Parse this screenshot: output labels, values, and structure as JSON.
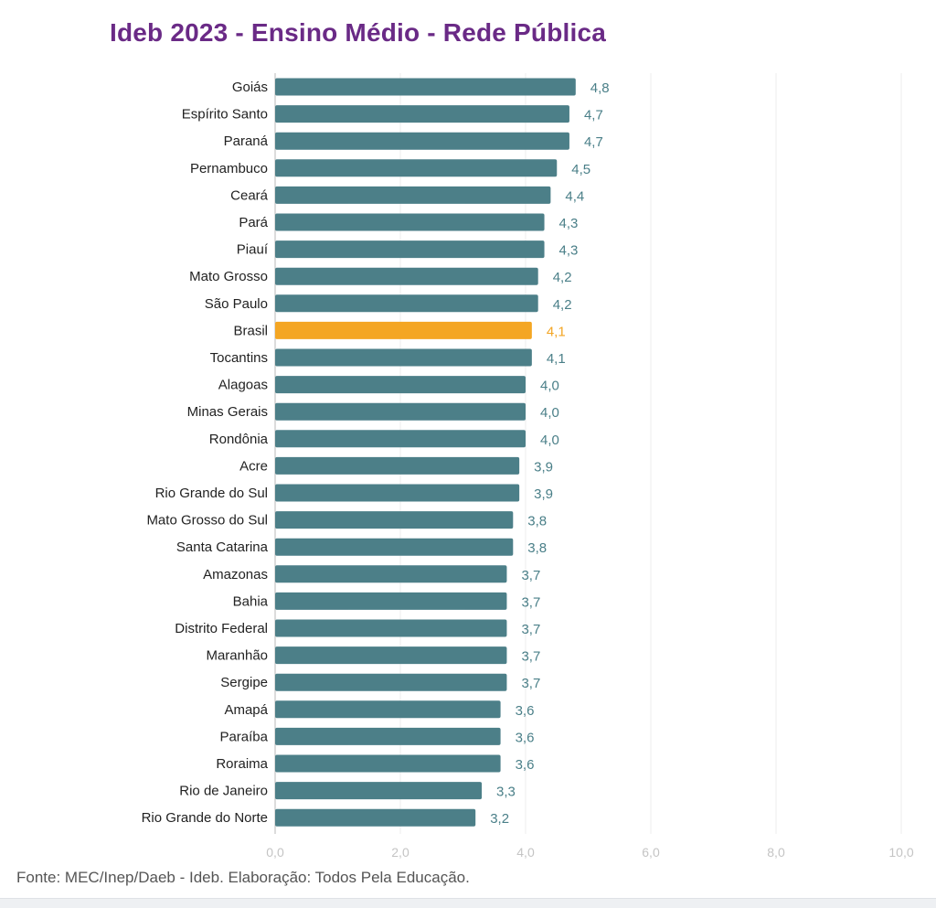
{
  "title": "Ideb 2023 - Ensino Médio - Rede Pública",
  "source": "Fonte: MEC/Inep/Daeb - Ideb. Elaboração: Todos Pela Educação.",
  "colors": {
    "bar": "#4c7f88",
    "highlight_bar": "#f4a623",
    "grid": "#eeeeee",
    "axis": "#d0d0d0",
    "title": "#6a2a86"
  },
  "chart_data": {
    "type": "bar",
    "orientation": "horizontal",
    "title": "Ideb 2023 - Ensino Médio - Rede Pública",
    "xlabel": "",
    "ylabel": "",
    "xlim": [
      0,
      10
    ],
    "ticks": [
      0,
      2,
      4,
      6,
      8,
      10
    ],
    "tick_labels": [
      "0,0",
      "2,0",
      "4,0",
      "6,0",
      "8,0",
      "10,0"
    ],
    "grid": "vertical",
    "highlight": "Brasil",
    "categories": [
      "Goiás",
      "Espírito Santo",
      "Paraná",
      "Pernambuco",
      "Ceará",
      "Pará",
      "Piauí",
      "Mato Grosso",
      "São Paulo",
      "Brasil",
      "Tocantins",
      "Alagoas",
      "Minas Gerais",
      "Rondônia",
      "Acre",
      "Rio Grande do Sul",
      "Mato Grosso do Sul",
      "Santa Catarina",
      "Amazonas",
      "Bahia",
      "Distrito Federal",
      "Maranhão",
      "Sergipe",
      "Amapá",
      "Paraíba",
      "Roraima",
      "Rio de Janeiro",
      "Rio Grande do Norte"
    ],
    "values": [
      4.8,
      4.7,
      4.7,
      4.5,
      4.4,
      4.3,
      4.3,
      4.2,
      4.2,
      4.1,
      4.1,
      4.0,
      4.0,
      4.0,
      3.9,
      3.9,
      3.8,
      3.8,
      3.7,
      3.7,
      3.7,
      3.7,
      3.7,
      3.6,
      3.6,
      3.6,
      3.3,
      3.2
    ],
    "value_labels": [
      "4,8",
      "4,7",
      "4,7",
      "4,5",
      "4,4",
      "4,3",
      "4,3",
      "4,2",
      "4,2",
      "4,1",
      "4,1",
      "4,0",
      "4,0",
      "4,0",
      "3,9",
      "3,9",
      "3,8",
      "3,8",
      "3,7",
      "3,7",
      "3,7",
      "3,7",
      "3,7",
      "3,6",
      "3,6",
      "3,6",
      "3,3",
      "3,2"
    ]
  }
}
